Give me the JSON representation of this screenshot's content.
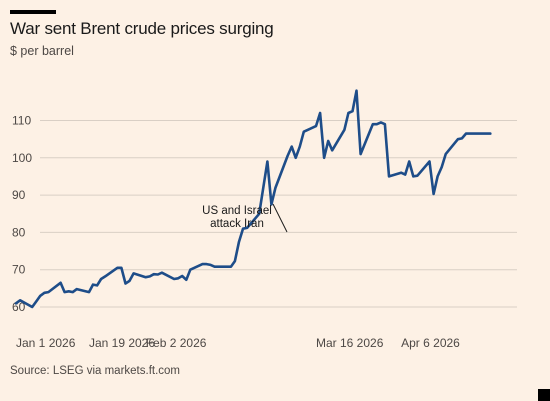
{
  "header": {
    "title": "War sent Brent crude prices surging",
    "subtitle": "$ per barrel"
  },
  "footer": {
    "source": "Source: LSEG via markets.ft.com"
  },
  "colors": {
    "background": "#fdf1e5",
    "line": "#1e4d89",
    "gridline": "#d9cfc5",
    "text": "#4d4845"
  },
  "chart_data": {
    "type": "line",
    "title": "War sent Brent crude prices surging",
    "ylabel": "$ per barrel",
    "ylim": [
      56,
      120
    ],
    "yticks": [
      60,
      70,
      80,
      90,
      100,
      110
    ],
    "grid": true,
    "x_ticks": [
      {
        "date": "2026-01-01",
        "label": "Jan 1 2026"
      },
      {
        "date": "2026-01-19",
        "label": "Jan 19 2026"
      },
      {
        "date": "2026-02-02",
        "label": "Feb 2 2026"
      },
      {
        "date": "2026-03-16",
        "label": "Mar 16 2026"
      },
      {
        "date": "2026-04-06",
        "label": "Apr 6 2026"
      }
    ],
    "xlim": [
      "2026-01-01",
      "2026-04-30"
    ],
    "series": [
      {
        "x": [
          "2026-01-01",
          "2026-01-02",
          "2026-01-05",
          "2026-01-06",
          "2026-01-07",
          "2026-01-08",
          "2026-01-09",
          "2026-01-12",
          "2026-01-13",
          "2026-01-14",
          "2026-01-15",
          "2026-01-16",
          "2026-01-19",
          "2026-01-20",
          "2026-01-21",
          "2026-01-22",
          "2026-01-23",
          "2026-01-26",
          "2026-01-27",
          "2026-01-28",
          "2026-01-29",
          "2026-01-30",
          "2026-02-02",
          "2026-02-03",
          "2026-02-04",
          "2026-02-05",
          "2026-02-06",
          "2026-02-09",
          "2026-02-10",
          "2026-02-11",
          "2026-02-12",
          "2026-02-13",
          "2026-02-16",
          "2026-02-17",
          "2026-02-18",
          "2026-02-19",
          "2026-02-20",
          "2026-02-23",
          "2026-02-24",
          "2026-02-25",
          "2026-02-26",
          "2026-02-27",
          "2026-03-02",
          "2026-03-03",
          "2026-03-04",
          "2026-03-05",
          "2026-03-06",
          "2026-03-09",
          "2026-03-10",
          "2026-03-11",
          "2026-03-12",
          "2026-03-13",
          "2026-03-16",
          "2026-03-17",
          "2026-03-18",
          "2026-03-19",
          "2026-03-20",
          "2026-03-23",
          "2026-03-24",
          "2026-03-25",
          "2026-03-26",
          "2026-03-27",
          "2026-03-30",
          "2026-03-31",
          "2026-04-01",
          "2026-04-02",
          "2026-04-03",
          "2026-04-06",
          "2026-04-07",
          "2026-04-08",
          "2026-04-09",
          "2026-04-10",
          "2026-04-13",
          "2026-04-14",
          "2026-04-15",
          "2026-04-16",
          "2026-04-17",
          "2026-04-20",
          "2026-04-21",
          "2026-04-22",
          "2026-04-23",
          "2026-04-24",
          "2026-04-27",
          "2026-04-28"
        ],
        "values": [
          61.0,
          61.8,
          60.0,
          61.5,
          63.0,
          63.8,
          64.0,
          66.5,
          64.0,
          64.2,
          64.0,
          64.8,
          64.0,
          66.0,
          65.8,
          67.5,
          68.2,
          70.5,
          70.5,
          66.3,
          67.0,
          69.0,
          68.0,
          68.2,
          68.8,
          68.7,
          69.2,
          67.5,
          67.7,
          68.3,
          67.3,
          70.0,
          71.5,
          71.5,
          71.3,
          70.8,
          70.8,
          70.8,
          72.3,
          77.5,
          81.0,
          81.2,
          85.0,
          92.0,
          99.0,
          87.5,
          92.0,
          100.5,
          103.0,
          100.0,
          103.0,
          107.0,
          108.5,
          112.0,
          100.0,
          104.5,
          102.0,
          107.5,
          112.0,
          112.5,
          118.0,
          101.0,
          109.0,
          109.0,
          109.5,
          109.0,
          95.0,
          96.0,
          95.5,
          99.0,
          95.0,
          95.2,
          99.0,
          90.3,
          95.0,
          97.5,
          101.0,
          105.0,
          105.2,
          106.5,
          106.5,
          106.5,
          106.5,
          106.5
        ]
      }
    ],
    "annotations": [
      {
        "text": "US and Israel attack Iran",
        "lines": [
          "US and Israel",
          "attack Iran"
        ],
        "x": "2026-02-28",
        "y": 80
      }
    ]
  }
}
